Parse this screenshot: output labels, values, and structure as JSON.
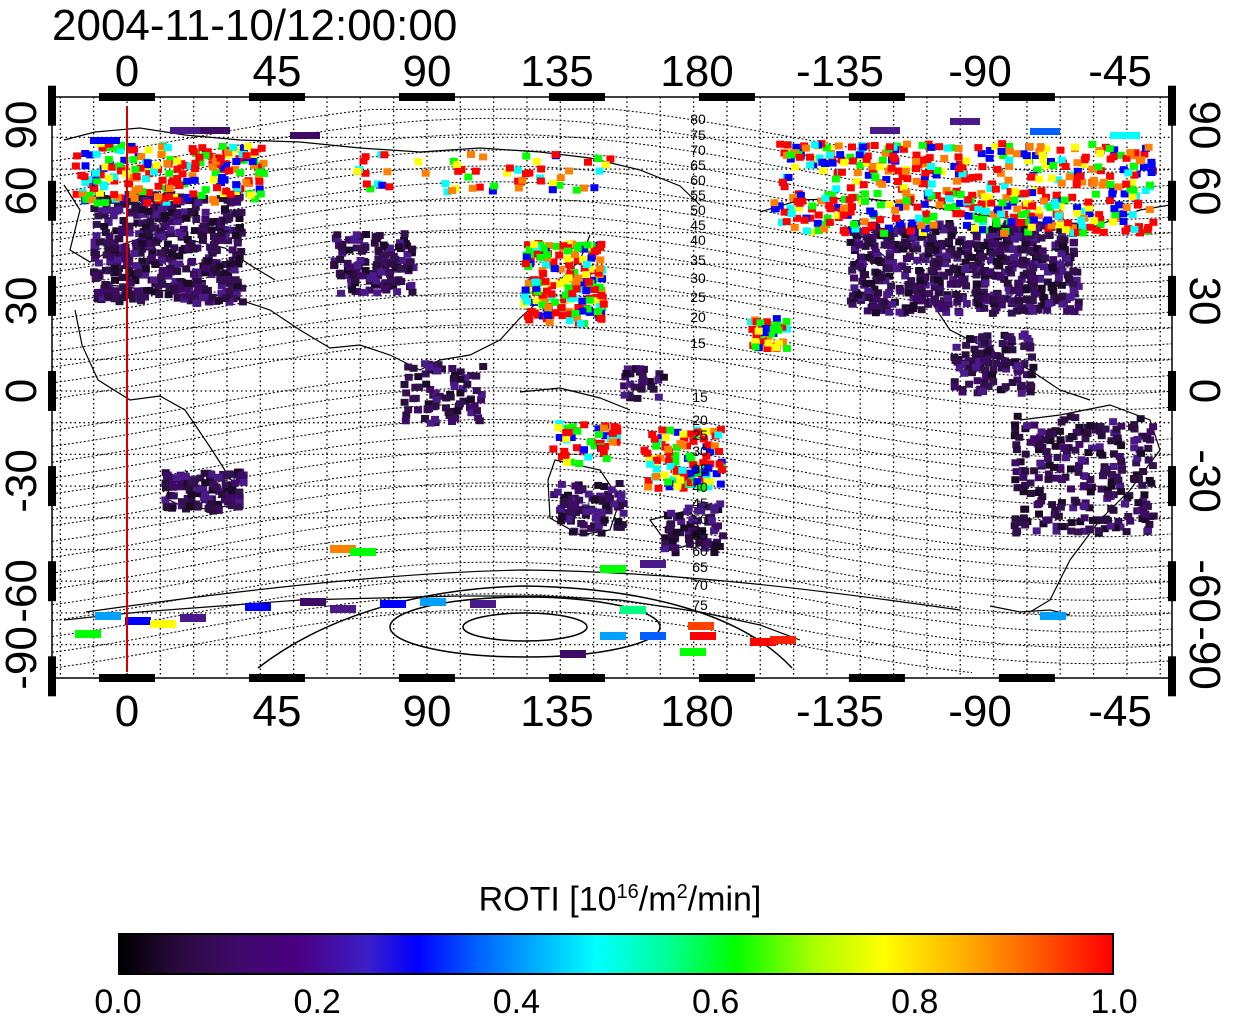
{
  "title": "2004-11-10/12:00:00",
  "map": {
    "lon_ticks_top": [
      "0",
      "45",
      "90",
      "135",
      "180",
      "-135",
      "-90",
      "-45"
    ],
    "lon_ticks_bottom": [
      "0",
      "45",
      "90",
      "135",
      "180",
      "-135",
      "-90",
      "-45"
    ],
    "lat_ticks_left": [
      "90",
      "60",
      "30",
      "0",
      "-30",
      "-60",
      "-90"
    ],
    "lat_ticks_right": [
      "90",
      "60",
      "30",
      "0",
      "-30",
      "-60",
      "-90"
    ],
    "contour_labels_north": [
      "80",
      "75",
      "70",
      "65",
      "60",
      "55",
      "50",
      "45",
      "40",
      "35",
      "30",
      "25",
      "20",
      "15"
    ],
    "contour_labels_south": [
      "15",
      "20",
      "25",
      "30",
      "35",
      "40",
      "45",
      "50",
      "55",
      "60",
      "65",
      "70",
      "75"
    ],
    "meridian_marker_color": "#d40000"
  },
  "colorbar": {
    "title_main": "ROTI  [10",
    "title_exp1": "16",
    "title_mid": "/m",
    "title_exp2": "2",
    "title_end": "/min]",
    "tick_labels": [
      "0.0",
      "0.2",
      "0.4",
      "0.6",
      "0.8",
      "1.0"
    ],
    "range": [
      0.0,
      1.0
    ]
  }
}
